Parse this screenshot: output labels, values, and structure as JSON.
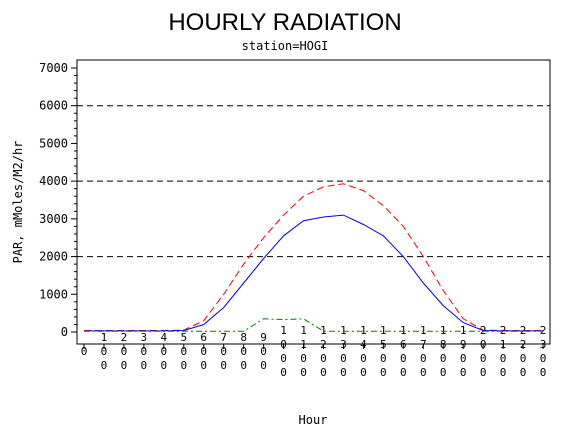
{
  "chart_data": {
    "type": "line",
    "title": "HOURLY RADIATION",
    "subtitle": "station=HOGI",
    "xlabel": "Hour",
    "ylabel": "PAR, mMoles/M2/hr",
    "ylim": [
      0,
      7000
    ],
    "yticks": [
      0,
      1000,
      2000,
      3000,
      4000,
      5000,
      6000,
      7000
    ],
    "y_tick_labels": [
      "0",
      "1000",
      "2000",
      "3000",
      "4000",
      "5000",
      "6000",
      "7000"
    ],
    "reference_lines": [
      2000,
      4000,
      6000
    ],
    "x": [
      0,
      100,
      200,
      300,
      400,
      500,
      600,
      700,
      800,
      900,
      1000,
      1100,
      1200,
      1300,
      1400,
      1500,
      1600,
      1700,
      1800,
      1900,
      2000,
      2100,
      2200,
      2300
    ],
    "x_tick_labels": [
      "0",
      "100",
      "200",
      "300",
      "400",
      "500",
      "600",
      "700",
      "800",
      "900",
      "1000",
      "1100",
      "1200",
      "1300",
      "1400",
      "1500",
      "1600",
      "1700",
      "1800",
      "1900",
      "2000",
      "2100",
      "2200",
      "2300"
    ],
    "series": [
      {
        "color": "#ff0000",
        "dash": "dashed",
        "values": [
          40,
          40,
          40,
          40,
          40,
          50,
          300,
          1000,
          1800,
          2500,
          3100,
          3600,
          3850,
          3930,
          3750,
          3350,
          2800,
          2000,
          1100,
          350,
          50,
          40,
          40,
          40
        ]
      },
      {
        "color": "#0000ff",
        "dash": "solid",
        "values": [
          30,
          30,
          30,
          30,
          30,
          40,
          200,
          650,
          1300,
          1950,
          2550,
          2950,
          3050,
          3100,
          2850,
          2550,
          2000,
          1300,
          700,
          250,
          40,
          30,
          30,
          30
        ]
      },
      {
        "color": "#008000",
        "dash": "dashdot",
        "values": [
          20,
          20,
          20,
          20,
          20,
          20,
          20,
          20,
          20,
          350,
          330,
          350,
          20,
          20,
          20,
          20,
          20,
          20,
          20,
          20,
          20,
          20,
          20,
          20
        ]
      }
    ],
    "grid": false,
    "legend": "none"
  }
}
